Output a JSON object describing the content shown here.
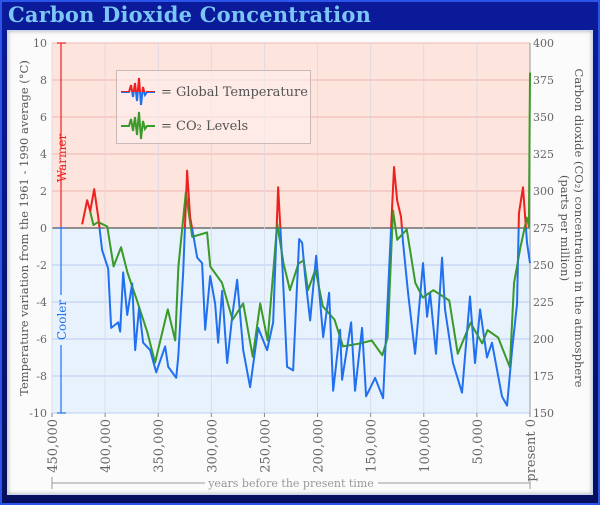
{
  "title": "Carbon Dioxide Concentration",
  "chart_data": {
    "type": "line",
    "title": "Carbon Dioxide Concentration",
    "xlabel": "years before the present time",
    "ylabel": "Temperature variation from the 1961 - 1990 average (°C)",
    "y2label": "Carbon dioxide (CO2) concentration in the atmosphere (parts per million)",
    "y2label_lines": [
      "Carbon dioxide (CO₂) concentration in the atmosphere",
      "(parts per million)"
    ],
    "xlim": [
      450000,
      0
    ],
    "ylim": [
      -10,
      10
    ],
    "y2lim": [
      150,
      400
    ],
    "grid": true,
    "legend_placement": "top-left",
    "x_ticks": [
      "450,000",
      "400,000",
      "350,000",
      "300,000",
      "250,000",
      "200,000",
      "150,000",
      "100,000",
      "50,000",
      "present  0"
    ],
    "x_tick_values": [
      450000,
      400000,
      350000,
      300000,
      250000,
      200000,
      150000,
      100000,
      50000,
      0
    ],
    "y_ticks": [
      "10",
      "8",
      "6",
      "4",
      "2",
      "0",
      "-2",
      "-4",
      "-6",
      "-8",
      "-10"
    ],
    "y_tick_values": [
      10,
      8,
      6,
      4,
      2,
      0,
      -2,
      -4,
      -6,
      -8,
      -10
    ],
    "y2_ticks": [
      "400",
      "375",
      "350",
      "325",
      "300",
      "275",
      "250",
      "225",
      "200",
      "175",
      "150"
    ],
    "y2_tick_values": [
      400,
      375,
      350,
      325,
      300,
      275,
      250,
      225,
      200,
      175,
      150
    ],
    "annotations": {
      "warmer": "Warmer",
      "cooler": "Cooler"
    },
    "colors": {
      "warm": "#ee2020",
      "cool": "#2070f0",
      "co2": "#3a9a2a",
      "warm_bg": "#fde4dc",
      "cool_bg": "#e8f2fc"
    },
    "series": [
      {
        "name": "Global Temperature",
        "axis": "left",
        "x": [
          421600,
          416900,
          414000,
          410300,
          406500,
          402800,
          397100,
          394300,
          387700,
          385800,
          383000,
          379200,
          374500,
          371700,
          368000,
          364200,
          357600,
          351900,
          343500,
          340600,
          333100,
          331200,
          326500,
          322800,
          320000,
          313300,
          308700,
          305800,
          301100,
          296400,
          293600,
          289800,
          285100,
          280400,
          275700,
          270000,
          263500,
          255900,
          247500,
          241800,
          237100,
          233400,
          228700,
          223000,
          217300,
          214500,
          211700,
          207000,
          201300,
          194700,
          189100,
          185300,
          178800,
          176900,
          168400,
          164700,
          158100,
          154300,
          145800,
          138300,
          133600,
          128000,
          125100,
          121400,
          119500,
          114800,
          108200,
          100700,
          96900,
          94100,
          88500,
          82800,
          80000,
          72500,
          64000,
          56500,
          51800,
          47000,
          40500,
          35800,
          26400,
          21600,
          16900,
          12200,
          10400,
          6600,
          2800,
          0
        ],
        "y": [
          0.2,
          1.5,
          0.9,
          2.1,
          0.6,
          -1.2,
          -2.2,
          -5.4,
          -5.1,
          -5.6,
          -2.4,
          -4.7,
          -3.0,
          -6.6,
          -4.3,
          -6.2,
          -6.6,
          -7.8,
          -6.4,
          -7.5,
          -8.1,
          -7.0,
          -2.4,
          3.1,
          0.6,
          -1.6,
          -1.9,
          -5.5,
          -2.6,
          -4.1,
          -6.2,
          -3.4,
          -7.3,
          -4.8,
          -2.8,
          -6.6,
          -8.6,
          -5.4,
          -6.6,
          -5.1,
          2.2,
          -1.7,
          -7.5,
          -7.7,
          -0.6,
          -0.8,
          -2.6,
          -5.0,
          -1.5,
          -5.9,
          -3.5,
          -8.8,
          -5.5,
          -8.2,
          -5.1,
          -8.8,
          -5.4,
          -9.1,
          -8.1,
          -9.2,
          -3.4,
          3.3,
          1.5,
          0.6,
          -0.8,
          -3.5,
          -6.8,
          -1.9,
          -4.8,
          -3.5,
          -6.8,
          -1.6,
          -4.4,
          -7.3,
          -8.9,
          -3.7,
          -7.3,
          -4.4,
          -7.0,
          -6.2,
          -9.1,
          -9.6,
          -6.6,
          -4.1,
          0.8,
          2.2,
          -0.8,
          -1.9
        ]
      },
      {
        "name": "CO₂ Levels",
        "axis": "right",
        "x": [
          414000,
          411000,
          406500,
          398000,
          392000,
          385000,
          379000,
          370000,
          360000,
          353000,
          341000,
          334000,
          331000,
          324000,
          318000,
          304000,
          301000,
          290000,
          280000,
          270000,
          261000,
          254000,
          247000,
          238000,
          232000,
          226000,
          218000,
          213000,
          209000,
          202000,
          195000,
          184000,
          176000,
          160000,
          149000,
          139000,
          134000,
          129000,
          125000,
          116000,
          108000,
          101000,
          91000,
          76000,
          68000,
          56000,
          45000,
          40000,
          30000,
          19000,
          15000,
          9000,
          3000,
          1000,
          0
        ],
        "y": [
          286,
          277,
          279,
          276,
          249,
          262,
          245,
          226,
          204,
          184,
          220,
          199,
          249,
          299,
          269,
          272,
          249,
          238,
          213,
          224,
          188,
          224,
          199,
          278,
          251,
          233,
          251,
          253,
          233,
          247,
          222,
          213,
          195,
          197,
          199,
          189,
          201,
          287,
          267,
          274,
          238,
          228,
          233,
          226,
          190,
          211,
          197,
          206,
          201,
          181,
          238,
          262,
          282,
          276,
          380
        ]
      }
    ]
  },
  "legend": {
    "temperature_label": "= Global Temperature",
    "co2_label": "= CO₂ Levels"
  }
}
